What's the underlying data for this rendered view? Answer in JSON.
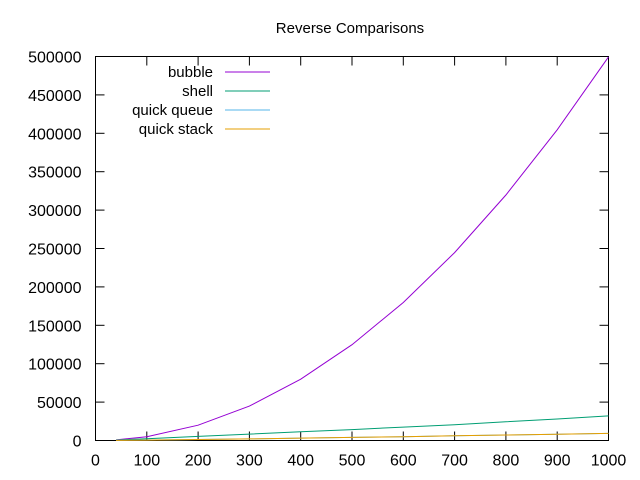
{
  "chart_data": {
    "type": "line",
    "title": "Reverse Comparisons",
    "xlabel": "",
    "ylabel": "",
    "xlim": [
      0,
      1000
    ],
    "ylim": [
      0,
      500000
    ],
    "x_ticks": [
      "0",
      "100",
      "200",
      "300",
      "400",
      "500",
      "600",
      "700",
      "800",
      "900",
      "1000"
    ],
    "y_ticks": [
      "0",
      "50000",
      "100000",
      "150000",
      "200000",
      "250000",
      "300000",
      "350000",
      "400000",
      "450000",
      "500000"
    ],
    "grid": false,
    "legend_position": "top-left",
    "x": [
      40,
      100,
      200,
      300,
      400,
      500,
      600,
      700,
      800,
      900,
      1000
    ],
    "series": [
      {
        "name": "bubble",
        "color": "#9400d3",
        "values": [
          780,
          4950,
          19900,
          44850,
          79800,
          124750,
          179700,
          244650,
          319600,
          404550,
          499500
        ]
      },
      {
        "name": "shell",
        "color": "#009e73",
        "values": [
          600,
          2300,
          5400,
          8300,
          11300,
          14200,
          17400,
          20400,
          24300,
          28000,
          32000
        ]
      },
      {
        "name": "quick queue",
        "color": "#56b4e9",
        "values": [
          100,
          500,
          1300,
          2100,
          3100,
          4100,
          5000,
          6200,
          7200,
          8200,
          9300
        ]
      },
      {
        "name": "quick stack",
        "color": "#e69f00",
        "values": [
          100,
          500,
          1300,
          2100,
          3100,
          4100,
          5000,
          6200,
          7200,
          8200,
          9300
        ]
      }
    ]
  }
}
